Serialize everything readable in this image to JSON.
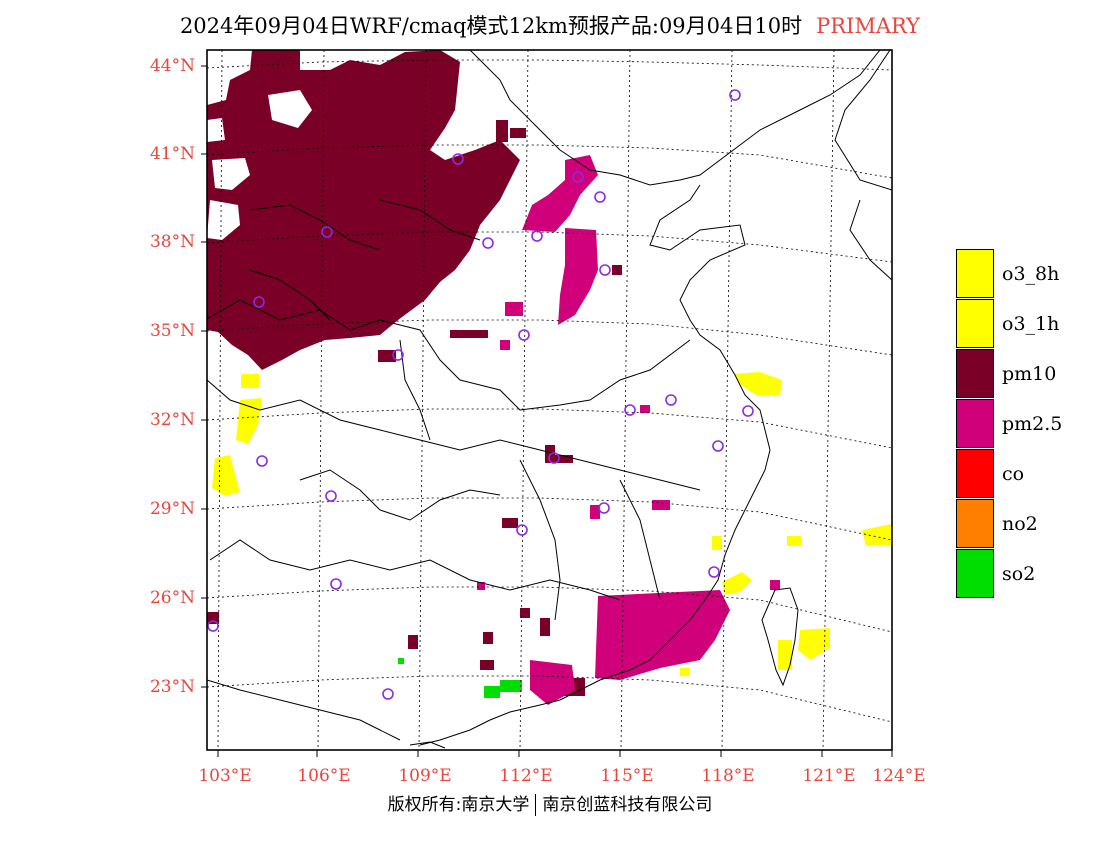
{
  "title": "2024年09月04日WRF/cmaq模式12km预报产品:09月04日10时",
  "title_tag": "PRIMARY",
  "lat_labels": [
    "44°N",
    "41°N",
    "38°N",
    "35°N",
    "32°N",
    "29°N",
    "26°N",
    "23°N"
  ],
  "lon_labels": [
    "103°E",
    "106°E",
    "109°E",
    "112°E",
    "115°E",
    "118°E",
    "121°E",
    "124°E"
  ],
  "legend": [
    {
      "label": "o3_8h",
      "color": "#ffff00"
    },
    {
      "label": "o3_1h",
      "color": "#ffff00"
    },
    {
      "label": "pm10",
      "color": "#7a0028"
    },
    {
      "label": "pm2.5",
      "color": "#d0007a"
    },
    {
      "label": "co",
      "color": "#ff0000"
    },
    {
      "label": "no2",
      "color": "#ff7f00"
    },
    {
      "label": "so2",
      "color": "#00dd00"
    }
  ],
  "footer_left": "版权所有:南京大学",
  "footer_right": "南京创蓝科技有限公司",
  "colors": {
    "axis_label": "#e8453c",
    "station_marker": "#8b2be2",
    "pm10": "#7a0028",
    "pm25": "#d0007a",
    "o3": "#ffff00",
    "so2": "#00dd00"
  }
}
